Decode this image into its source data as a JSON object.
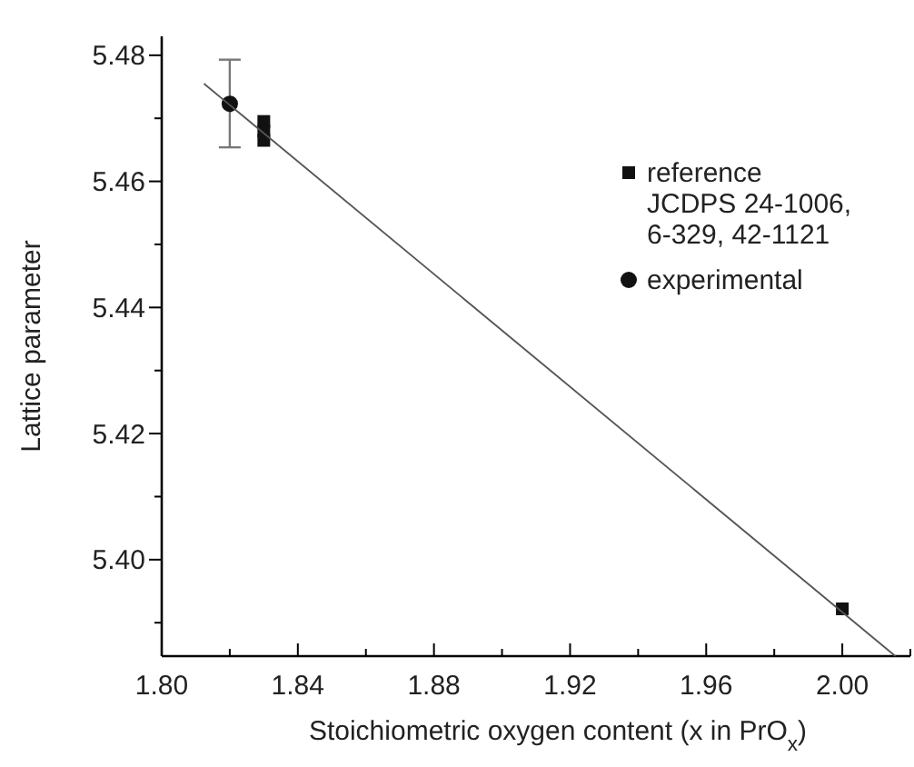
{
  "chart_data": {
    "type": "scatter",
    "xlabel": "Stoichiometric oxygen content (x in PrO$_{x}$)",
    "ylabel": "Lattice parameter",
    "xlim": [
      1.8,
      2.02
    ],
    "ylim": [
      5.3847,
      5.483
    ],
    "xticks": [
      {
        "value": 1.8,
        "label": "1.80"
      },
      {
        "value": 1.82,
        "label": null
      },
      {
        "value": 1.84,
        "label": "1.84"
      },
      {
        "value": 1.86,
        "label": null
      },
      {
        "value": 1.88,
        "label": "1.88"
      },
      {
        "value": 1.9,
        "label": null
      },
      {
        "value": 1.92,
        "label": "1.92"
      },
      {
        "value": 1.94,
        "label": null
      },
      {
        "value": 1.96,
        "label": "1.96"
      },
      {
        "value": 1.98,
        "label": null
      },
      {
        "value": 2.0,
        "label": "2.00"
      },
      {
        "value": 2.02,
        "label": null
      }
    ],
    "yticks": [
      {
        "value": 5.39,
        "label": null
      },
      {
        "value": 5.4,
        "label": "5.40"
      },
      {
        "value": 5.41,
        "label": null
      },
      {
        "value": 5.42,
        "label": "5.42"
      },
      {
        "value": 5.43,
        "label": null
      },
      {
        "value": 5.44,
        "label": "5.44"
      },
      {
        "value": 5.45,
        "label": null
      },
      {
        "value": 5.46,
        "label": "5.46"
      },
      {
        "value": 5.47,
        "label": null
      },
      {
        "value": 5.48,
        "label": "5.48"
      }
    ],
    "legend": "right",
    "series": [
      {
        "name": "reference\nJCDPS 24-1006,\n6-329, 42-1121",
        "marker": "square",
        "color": "#111111",
        "x": [
          1.83,
          1.83,
          1.83,
          2.0
        ],
        "values": [
          5.4695,
          5.468,
          5.4665,
          5.3922
        ]
      },
      {
        "name": "experimental",
        "marker": "circle",
        "color": "#111111",
        "x": [
          1.82
        ],
        "values": [
          5.4723
        ],
        "errors": [
          [
            5.4654,
            5.4793
          ]
        ]
      },
      {
        "type": "line",
        "color": "#555555",
        "x": [
          1.8124,
          2.0156
        ],
        "values": [
          5.4755,
          5.3847
        ]
      }
    ]
  }
}
